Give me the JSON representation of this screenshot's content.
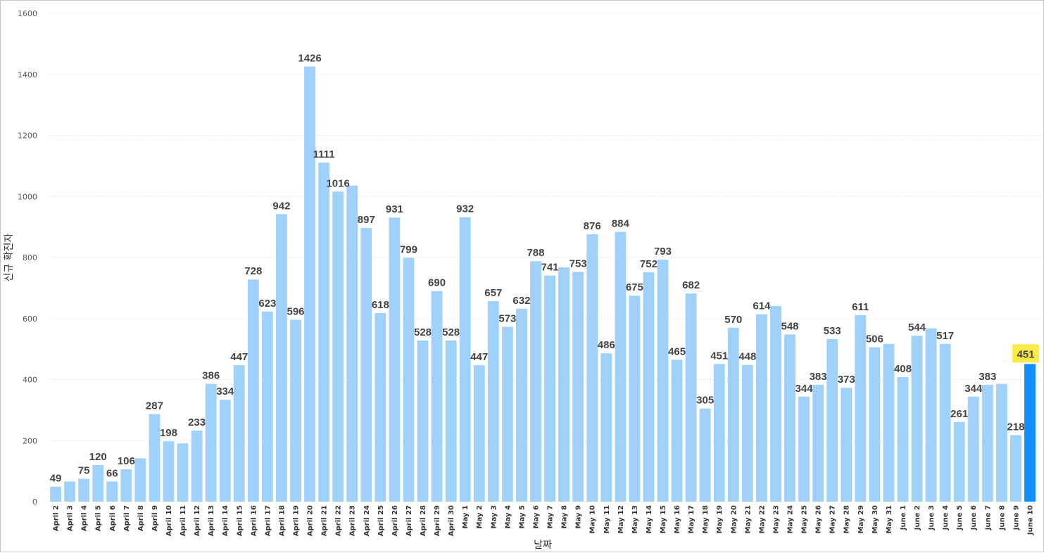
{
  "chart_data": {
    "type": "bar",
    "title": "",
    "xlabel": "날짜",
    "ylabel": "신규 확진자",
    "ylim": [
      0,
      1600
    ],
    "yticks": [
      0,
      200,
      400,
      600,
      800,
      1000,
      1200,
      1400,
      1600
    ],
    "categories": [
      "April 2",
      "April 3",
      "April 4",
      "April 5",
      "April 6",
      "April 7",
      "April 8",
      "April 9",
      "April 10",
      "April 11",
      "April 12",
      "April 13",
      "April 14",
      "April 15",
      "April 16",
      "April 17",
      "April 18",
      "April 19",
      "April 20",
      "April 21",
      "April 22",
      "April 23",
      "April 24",
      "April 25",
      "April 26",
      "April 27",
      "April 28",
      "April 29",
      "April 30",
      "May 1",
      "May 2",
      "May 3",
      "May 4",
      "May 5",
      "May 6",
      "May 7",
      "May 8",
      "May 9",
      "May 10",
      "May 11",
      "May 12",
      "May 13",
      "May 14",
      "May 15",
      "May 16",
      "May 17",
      "May 18",
      "May 19",
      "May 20",
      "May 21",
      "May 22",
      "May 23",
      "May 24",
      "May 25",
      "May 26",
      "May 27",
      "May 28",
      "May 29",
      "May 30",
      "May 31",
      "June 1",
      "June 2",
      "June 3",
      "June 4",
      "June 5",
      "June 6",
      "June 7",
      "June 8",
      "June 9",
      "June 10"
    ],
    "values": [
      49,
      66,
      75,
      120,
      66,
      106,
      142,
      287,
      198,
      191,
      233,
      386,
      334,
      447,
      728,
      623,
      942,
      596,
      1426,
      1111,
      1016,
      1036,
      897,
      618,
      931,
      799,
      528,
      690,
      528,
      932,
      447,
      657,
      573,
      632,
      788,
      741,
      768,
      753,
      876,
      486,
      884,
      675,
      752,
      793,
      465,
      682,
      305,
      451,
      570,
      448,
      614,
      641,
      548,
      344,
      383,
      533,
      373,
      611,
      506,
      517,
      408,
      544,
      568,
      517,
      261,
      344,
      383,
      386,
      218,
      451
    ],
    "data_labels": [
      "49",
      "",
      "75",
      "120",
      "66",
      "106",
      "",
      "287",
      "198",
      "",
      "233",
      "386",
      "334",
      "447",
      "728",
      "623",
      "942",
      "596",
      "1426",
      "1111",
      "1016",
      "",
      "897",
      "618",
      "931",
      "799",
      "528",
      "690",
      "528",
      "932",
      "447",
      "657",
      "573",
      "632",
      "788",
      "741",
      "",
      "753",
      "876",
      "486",
      "884",
      "675",
      "752",
      "793",
      "465",
      "682",
      "305",
      "451",
      "570",
      "448",
      "614",
      "",
      "548",
      "344",
      "383",
      "533",
      "373",
      "611",
      "506",
      "",
      "408",
      "544",
      "",
      "517",
      "261",
      "344",
      "383",
      "",
      "218",
      "451"
    ],
    "highlight_index": 69,
    "colors": {
      "bar": "#a0d1fb",
      "highlight_bar": "#118dff",
      "highlight_label_bg": "#fbea48",
      "grid": "#d2d2d2"
    },
    "grid": true
  }
}
